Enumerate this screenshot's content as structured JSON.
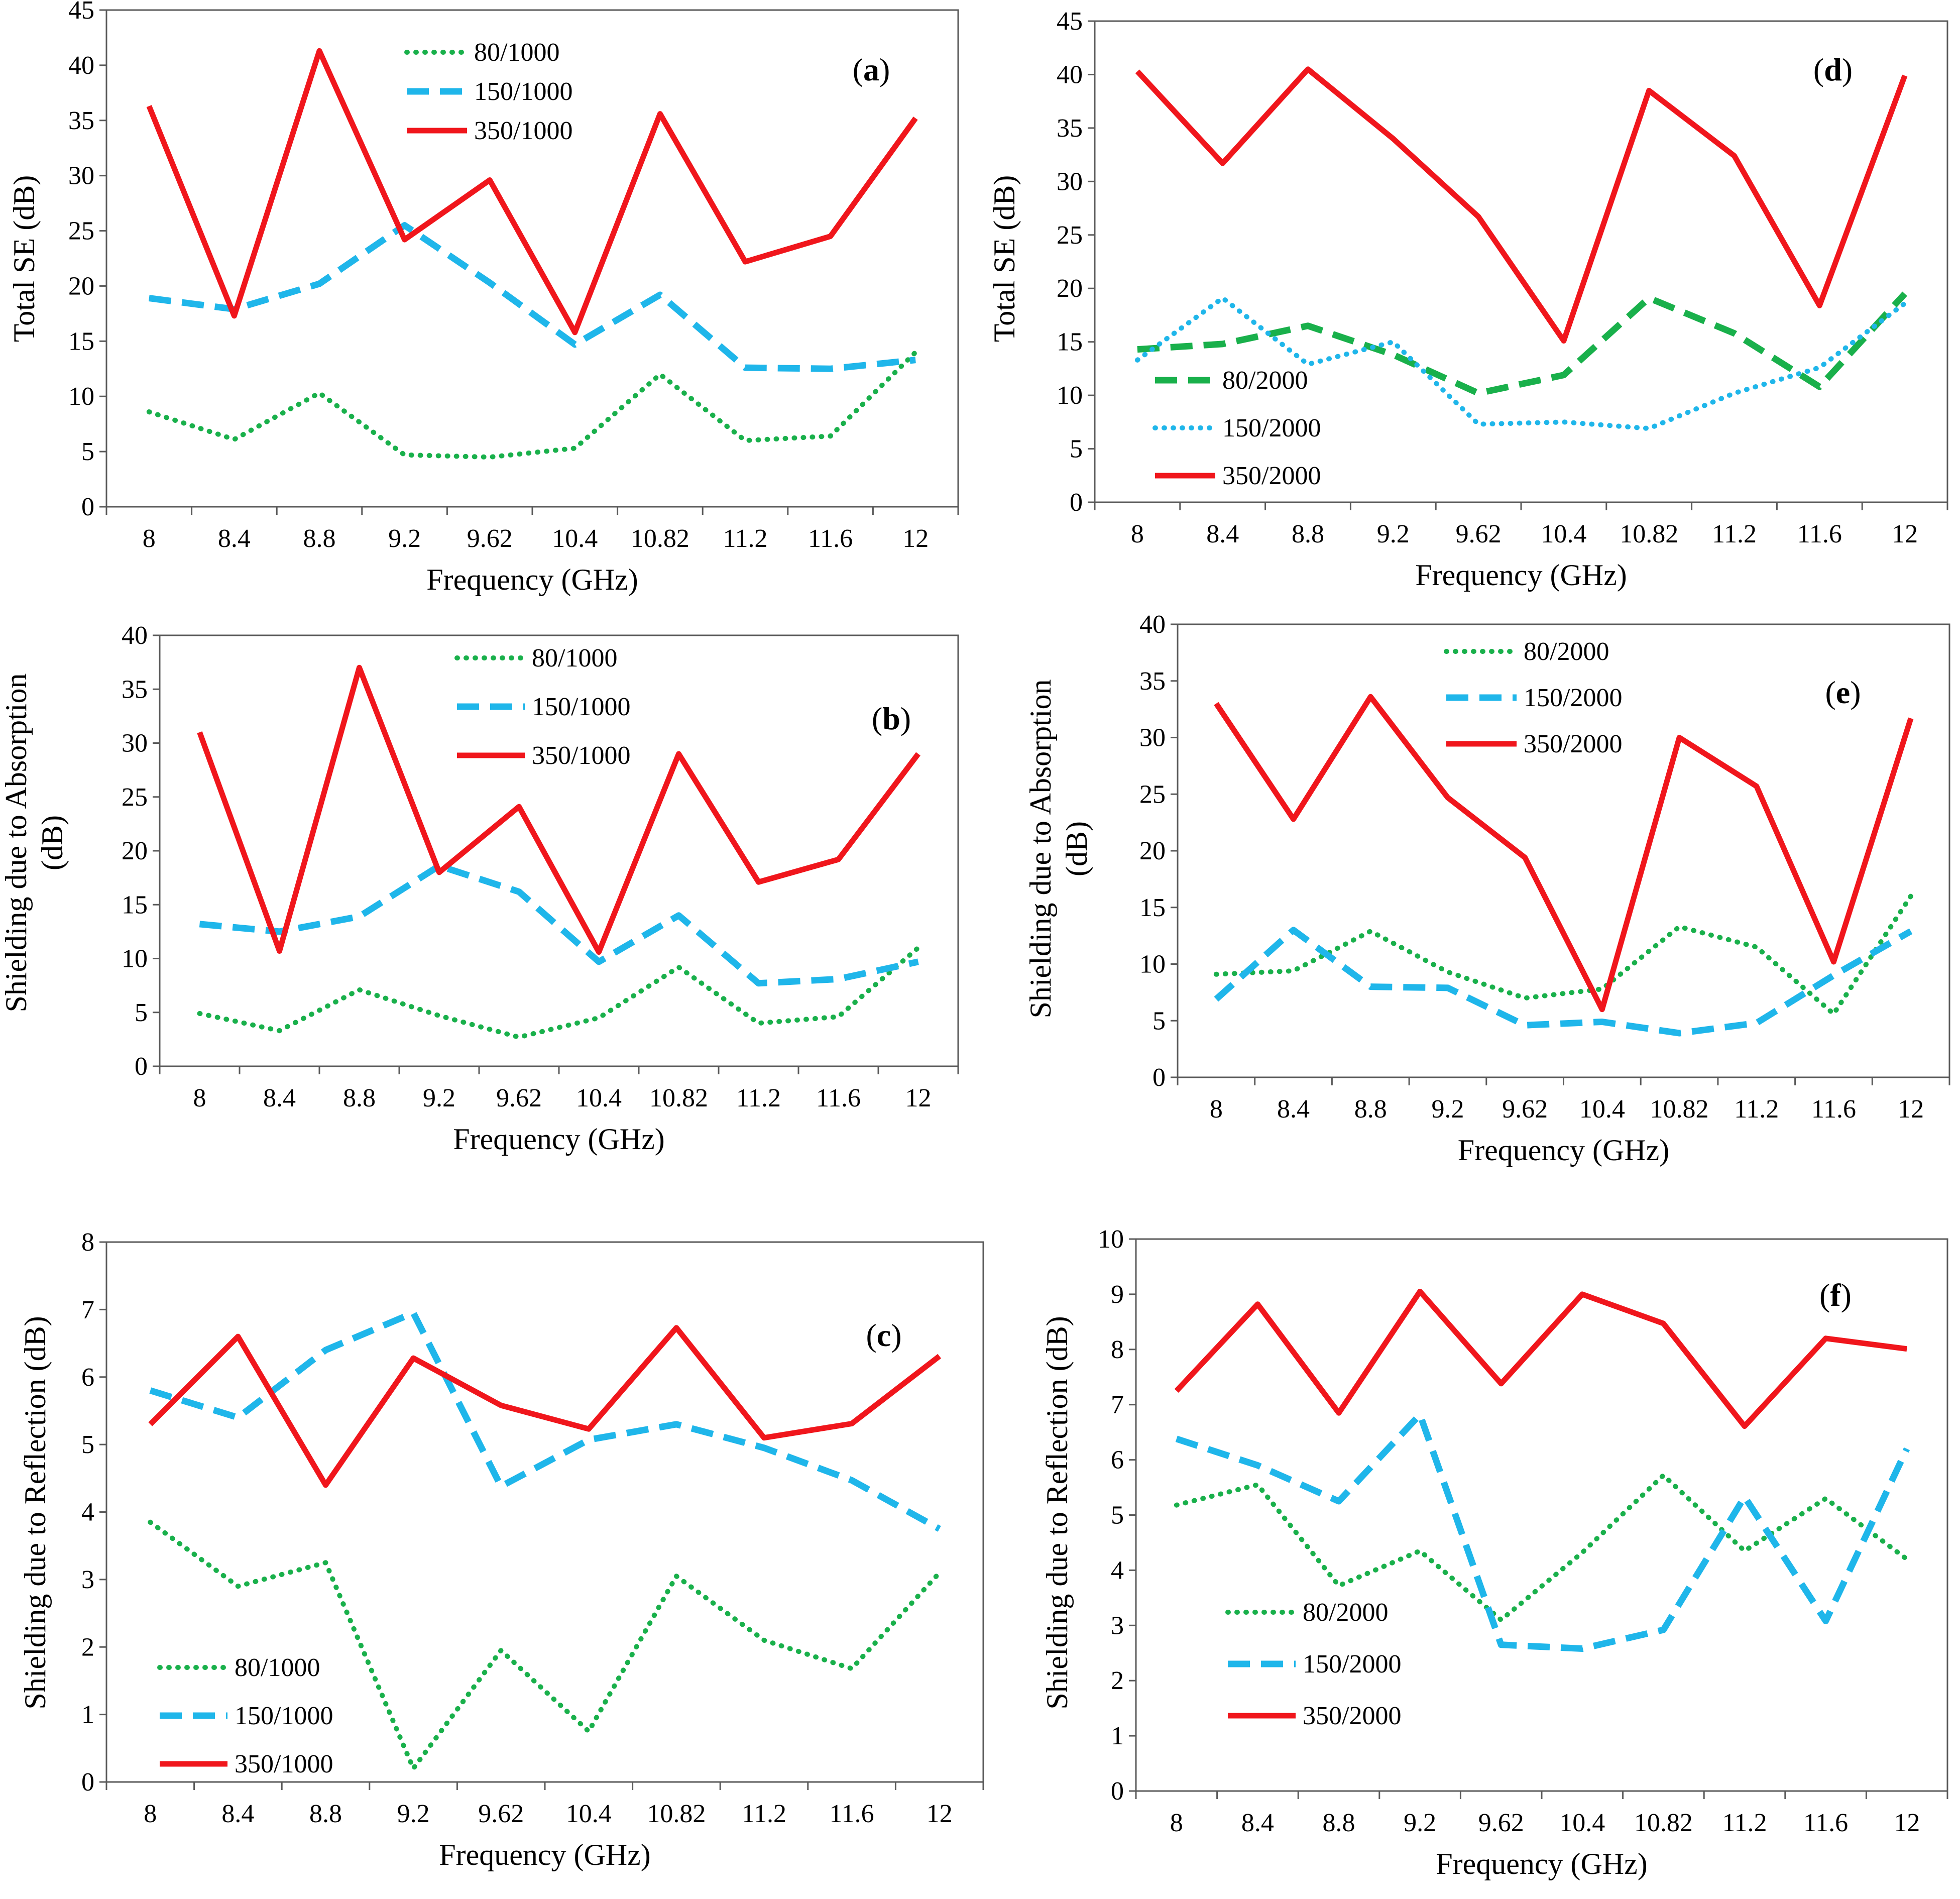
{
  "colors": {
    "green": "#19b04b",
    "blue": "#1fb6ea",
    "red": "#f0161c",
    "axis": "#595959",
    "text": "#000000"
  },
  "chart_data": [
    {
      "panel": "a",
      "type": "line",
      "title": "",
      "xlabel": "Frequency  (GHz)",
      "ylabel": "Total SE (dB)",
      "categories": [
        "8",
        "8.4",
        "8.8",
        "9.2",
        "9.62",
        "10.4",
        "10.82",
        "11.2",
        "11.6",
        "12"
      ],
      "ylim": [
        0,
        45
      ],
      "ystep": 5,
      "grid": false,
      "legend_position": "top-center",
      "series": [
        {
          "name": "80/1000",
          "style": "dotted",
          "color": "green",
          "values": [
            8.6,
            6.1,
            10.3,
            4.7,
            4.5,
            5.3,
            12.0,
            6.0,
            6.4,
            14.0
          ]
        },
        {
          "name": "150/1000",
          "style": "dashed",
          "color": "blue",
          "values": [
            18.9,
            17.9,
            20.2,
            25.5,
            20.3,
            14.7,
            19.2,
            12.6,
            12.5,
            13.3
          ]
        },
        {
          "name": "350/1000",
          "style": "solid",
          "color": "red",
          "values": [
            36.3,
            17.3,
            41.3,
            24.2,
            29.6,
            15.8,
            35.6,
            22.2,
            24.5,
            35.2
          ]
        }
      ]
    },
    {
      "panel": "b",
      "type": "line",
      "title": "",
      "xlabel": "Frequency  (GHz)",
      "ylabel": "Shielding due to Absorption (dB)",
      "ylabel_lines": [
        "Shielding due to Absorption",
        "(dB)"
      ],
      "categories": [
        "8",
        "8.4",
        "8.8",
        "9.2",
        "9.62",
        "10.4",
        "10.82",
        "11.2",
        "11.6",
        "12"
      ],
      "ylim": [
        0,
        40
      ],
      "ystep": 5,
      "grid": false,
      "legend_position": "top-center",
      "series": [
        {
          "name": "80/1000",
          "style": "dotted",
          "color": "green",
          "values": [
            4.9,
            3.3,
            7.1,
            4.7,
            2.7,
            4.5,
            9.2,
            4.0,
            4.6,
            11.0
          ]
        },
        {
          "name": "150/1000",
          "style": "dashed",
          "color": "blue",
          "values": [
            13.2,
            12.5,
            13.9,
            18.6,
            16.2,
            9.7,
            14.0,
            7.7,
            8.1,
            9.7
          ]
        },
        {
          "name": "350/1000",
          "style": "solid",
          "color": "red",
          "values": [
            31.0,
            10.7,
            37.0,
            18.0,
            24.1,
            10.6,
            29.0,
            17.1,
            19.2,
            29.0
          ]
        }
      ]
    },
    {
      "panel": "c",
      "type": "line",
      "title": "",
      "xlabel": "Frequency  (GHz)",
      "ylabel": "Shielding due to Reflection (dB)",
      "categories": [
        "8",
        "8.4",
        "8.8",
        "9.2",
        "9.62",
        "10.4",
        "10.82",
        "11.2",
        "11.6",
        "12"
      ],
      "ylim": [
        0,
        8
      ],
      "ystep": 1,
      "grid": false,
      "legend_position": "bottom-left",
      "series": [
        {
          "name": "80/1000",
          "style": "dotted",
          "color": "green",
          "values": [
            3.85,
            2.9,
            3.25,
            0.2,
            1.95,
            0.75,
            3.05,
            2.1,
            1.68,
            3.1
          ]
        },
        {
          "name": "150/1000",
          "style": "dashed",
          "color": "blue",
          "values": [
            5.8,
            5.4,
            6.4,
            6.95,
            4.38,
            5.07,
            5.3,
            4.95,
            4.47,
            3.75
          ]
        },
        {
          "name": "350/1000",
          "style": "solid",
          "color": "red",
          "values": [
            5.3,
            6.6,
            4.4,
            6.28,
            5.58,
            5.23,
            6.73,
            5.1,
            5.31,
            6.31
          ]
        }
      ]
    },
    {
      "panel": "d",
      "type": "line",
      "title": "",
      "xlabel": "Frequency  (GHz)",
      "ylabel": "Total SE (dB)",
      "categories": [
        "8",
        "8.4",
        "8.8",
        "9.2",
        "9.62",
        "10.4",
        "10.82",
        "11.2",
        "11.6",
        "12"
      ],
      "ylim": [
        0,
        45
      ],
      "ystep": 5,
      "grid": false,
      "legend_position": "bottom-left",
      "series": [
        {
          "name": "80/2000",
          "style": "dashed",
          "color": "green",
          "values": [
            14.3,
            14.8,
            16.5,
            13.8,
            10.2,
            11.9,
            19.1,
            15.8,
            10.8,
            19.5
          ]
        },
        {
          "name": "150/2000",
          "style": "dotted",
          "color": "blue",
          "values": [
            13.3,
            19.1,
            12.9,
            15.0,
            7.3,
            7.5,
            6.9,
            10.2,
            12.6,
            18.6
          ]
        },
        {
          "name": "350/2000",
          "style": "solid",
          "color": "red",
          "values": [
            40.3,
            31.7,
            40.5,
            34.0,
            26.7,
            15.1,
            38.5,
            32.4,
            18.4,
            39.9
          ]
        }
      ]
    },
    {
      "panel": "e",
      "type": "line",
      "title": "",
      "xlabel": "Frequency  (GHz)",
      "ylabel": "Shielding due to Absorption (dB)",
      "ylabel_lines": [
        "Shielding due to Absorption",
        "(dB)"
      ],
      "categories": [
        "8",
        "8.4",
        "8.8",
        "9.2",
        "9.62",
        "10.4",
        "10.82",
        "11.2",
        "11.6",
        "12"
      ],
      "ylim": [
        0,
        40
      ],
      "ystep": 5,
      "grid": false,
      "legend_position": "top-center",
      "series": [
        {
          "name": "80/2000",
          "style": "dotted",
          "color": "green",
          "values": [
            9.1,
            9.4,
            12.9,
            9.3,
            7.0,
            7.8,
            13.3,
            11.5,
            5.6,
            16.0
          ]
        },
        {
          "name": "150/2000",
          "style": "dashed",
          "color": "blue",
          "values": [
            6.9,
            13.0,
            8.0,
            7.9,
            4.6,
            4.9,
            3.9,
            4.8,
            9.0,
            12.9
          ]
        },
        {
          "name": "350/2000",
          "style": "solid",
          "color": "red",
          "values": [
            33.0,
            22.8,
            33.6,
            24.7,
            19.4,
            6.0,
            30.0,
            25.7,
            10.2,
            31.7
          ]
        }
      ]
    },
    {
      "panel": "f",
      "type": "line",
      "title": "",
      "xlabel": "Frequency  (GHz)",
      "ylabel": "Shielding due to Reflection (dB)",
      "categories": [
        "8",
        "8.4",
        "8.8",
        "9.2",
        "9.62",
        "10.4",
        "10.82",
        "11.2",
        "11.6",
        "12"
      ],
      "ylim": [
        0,
        10
      ],
      "ystep": 1,
      "grid": false,
      "legend_position": "bottom-left",
      "series": [
        {
          "name": "80/2000",
          "style": "dotted",
          "color": "green",
          "values": [
            5.18,
            5.55,
            3.72,
            4.35,
            3.1,
            4.32,
            5.72,
            4.35,
            5.3,
            4.2
          ]
        },
        {
          "name": "150/2000",
          "style": "dashed",
          "color": "blue",
          "values": [
            6.38,
            5.9,
            5.25,
            6.82,
            2.65,
            2.58,
            2.92,
            5.33,
            3.08,
            6.2
          ]
        },
        {
          "name": "350/2000",
          "style": "solid",
          "color": "red",
          "values": [
            7.25,
            8.82,
            6.85,
            9.05,
            7.38,
            9.0,
            8.47,
            6.61,
            8.2,
            8.01
          ]
        }
      ]
    }
  ]
}
